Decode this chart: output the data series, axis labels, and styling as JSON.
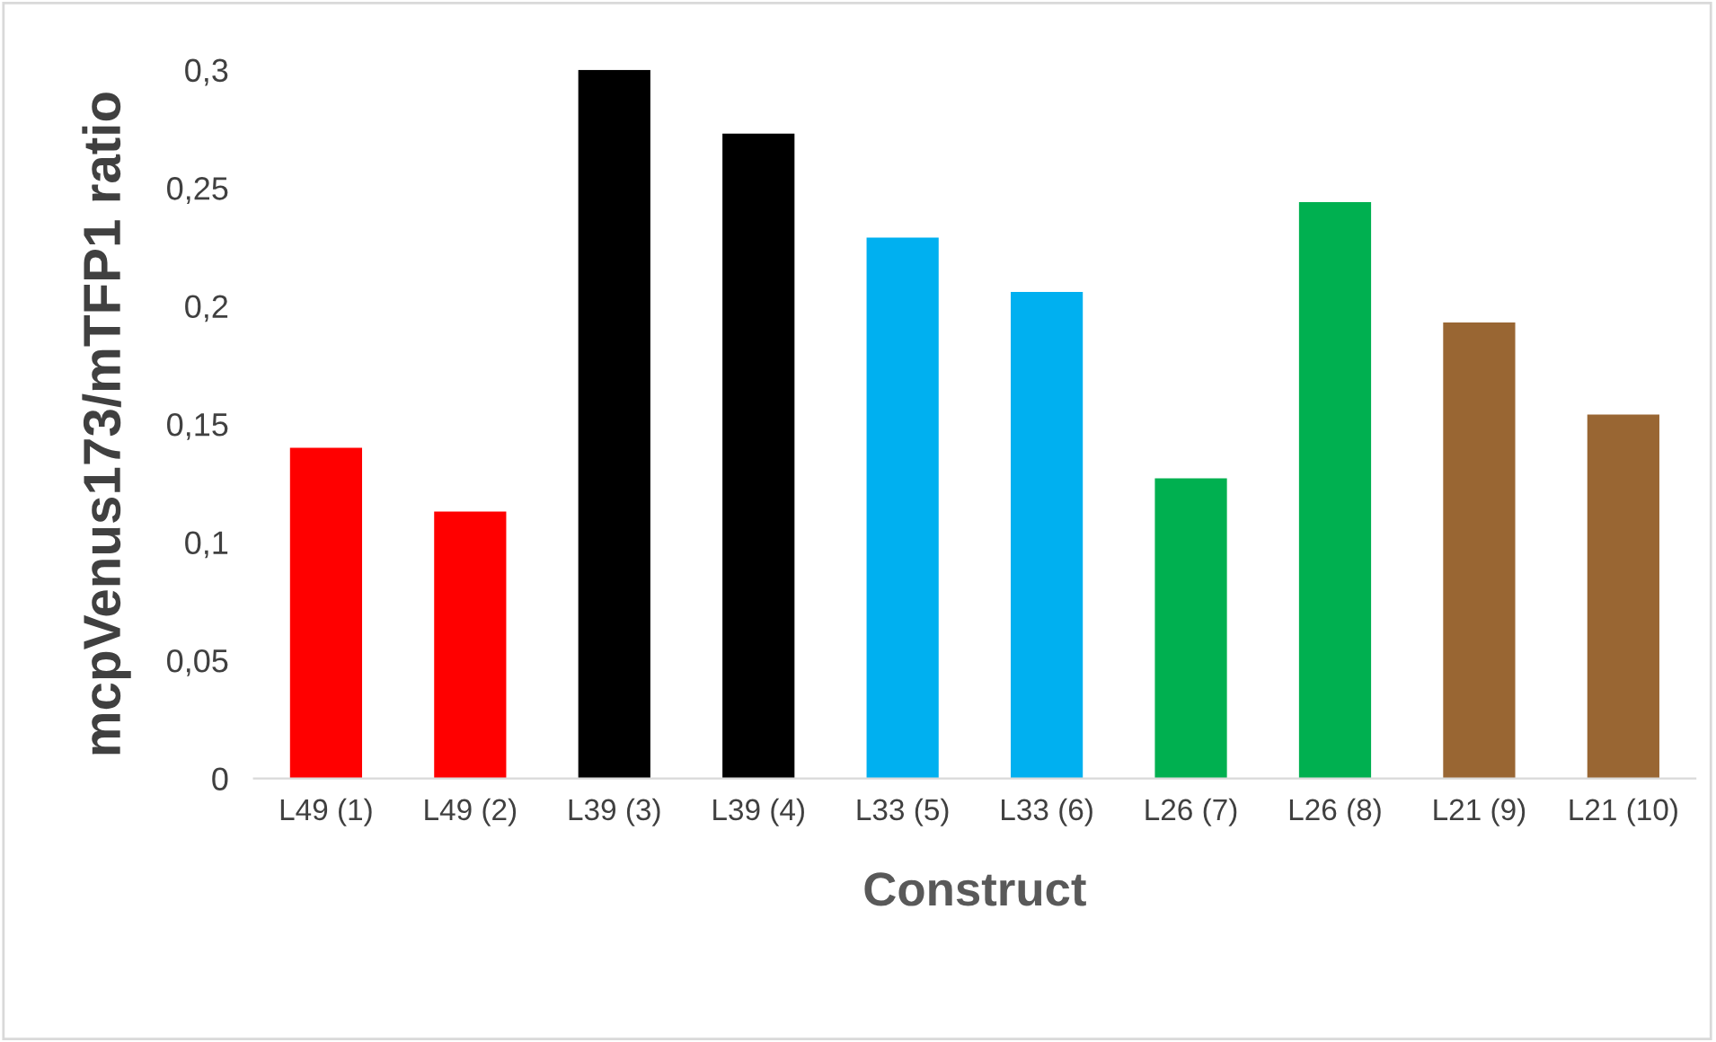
{
  "chart_data": {
    "type": "bar",
    "xlabel": "Construct",
    "ylabel": "mcpVenus173/mTFP1 ratio",
    "categories": [
      "L49 (1)",
      "L49 (2)",
      "L39 (3)",
      "L39 (4)",
      "L33 (5)",
      "L33 (6)",
      "L26 (7)",
      "L26 (8)",
      "L21 (9)",
      "L21 (10)"
    ],
    "values": [
      0.14,
      0.113,
      0.3,
      0.273,
      0.229,
      0.206,
      0.127,
      0.244,
      0.193,
      0.154
    ],
    "colors": [
      "#ff0000",
      "#ff0000",
      "#000000",
      "#000000",
      "#00b0f0",
      "#00b0f0",
      "#00b050",
      "#00b050",
      "#996633",
      "#996633"
    ],
    "ylim": [
      0,
      0.3
    ],
    "yticks": [
      {
        "value": 0,
        "label": "0"
      },
      {
        "value": 0.05,
        "label": "0,05"
      },
      {
        "value": 0.1,
        "label": "0,1"
      },
      {
        "value": 0.15,
        "label": "0,15"
      },
      {
        "value": 0.2,
        "label": "0,2"
      },
      {
        "value": 0.25,
        "label": "0,25"
      },
      {
        "value": 0.3,
        "label": "0,3"
      }
    ],
    "grid": false,
    "legend": false
  }
}
